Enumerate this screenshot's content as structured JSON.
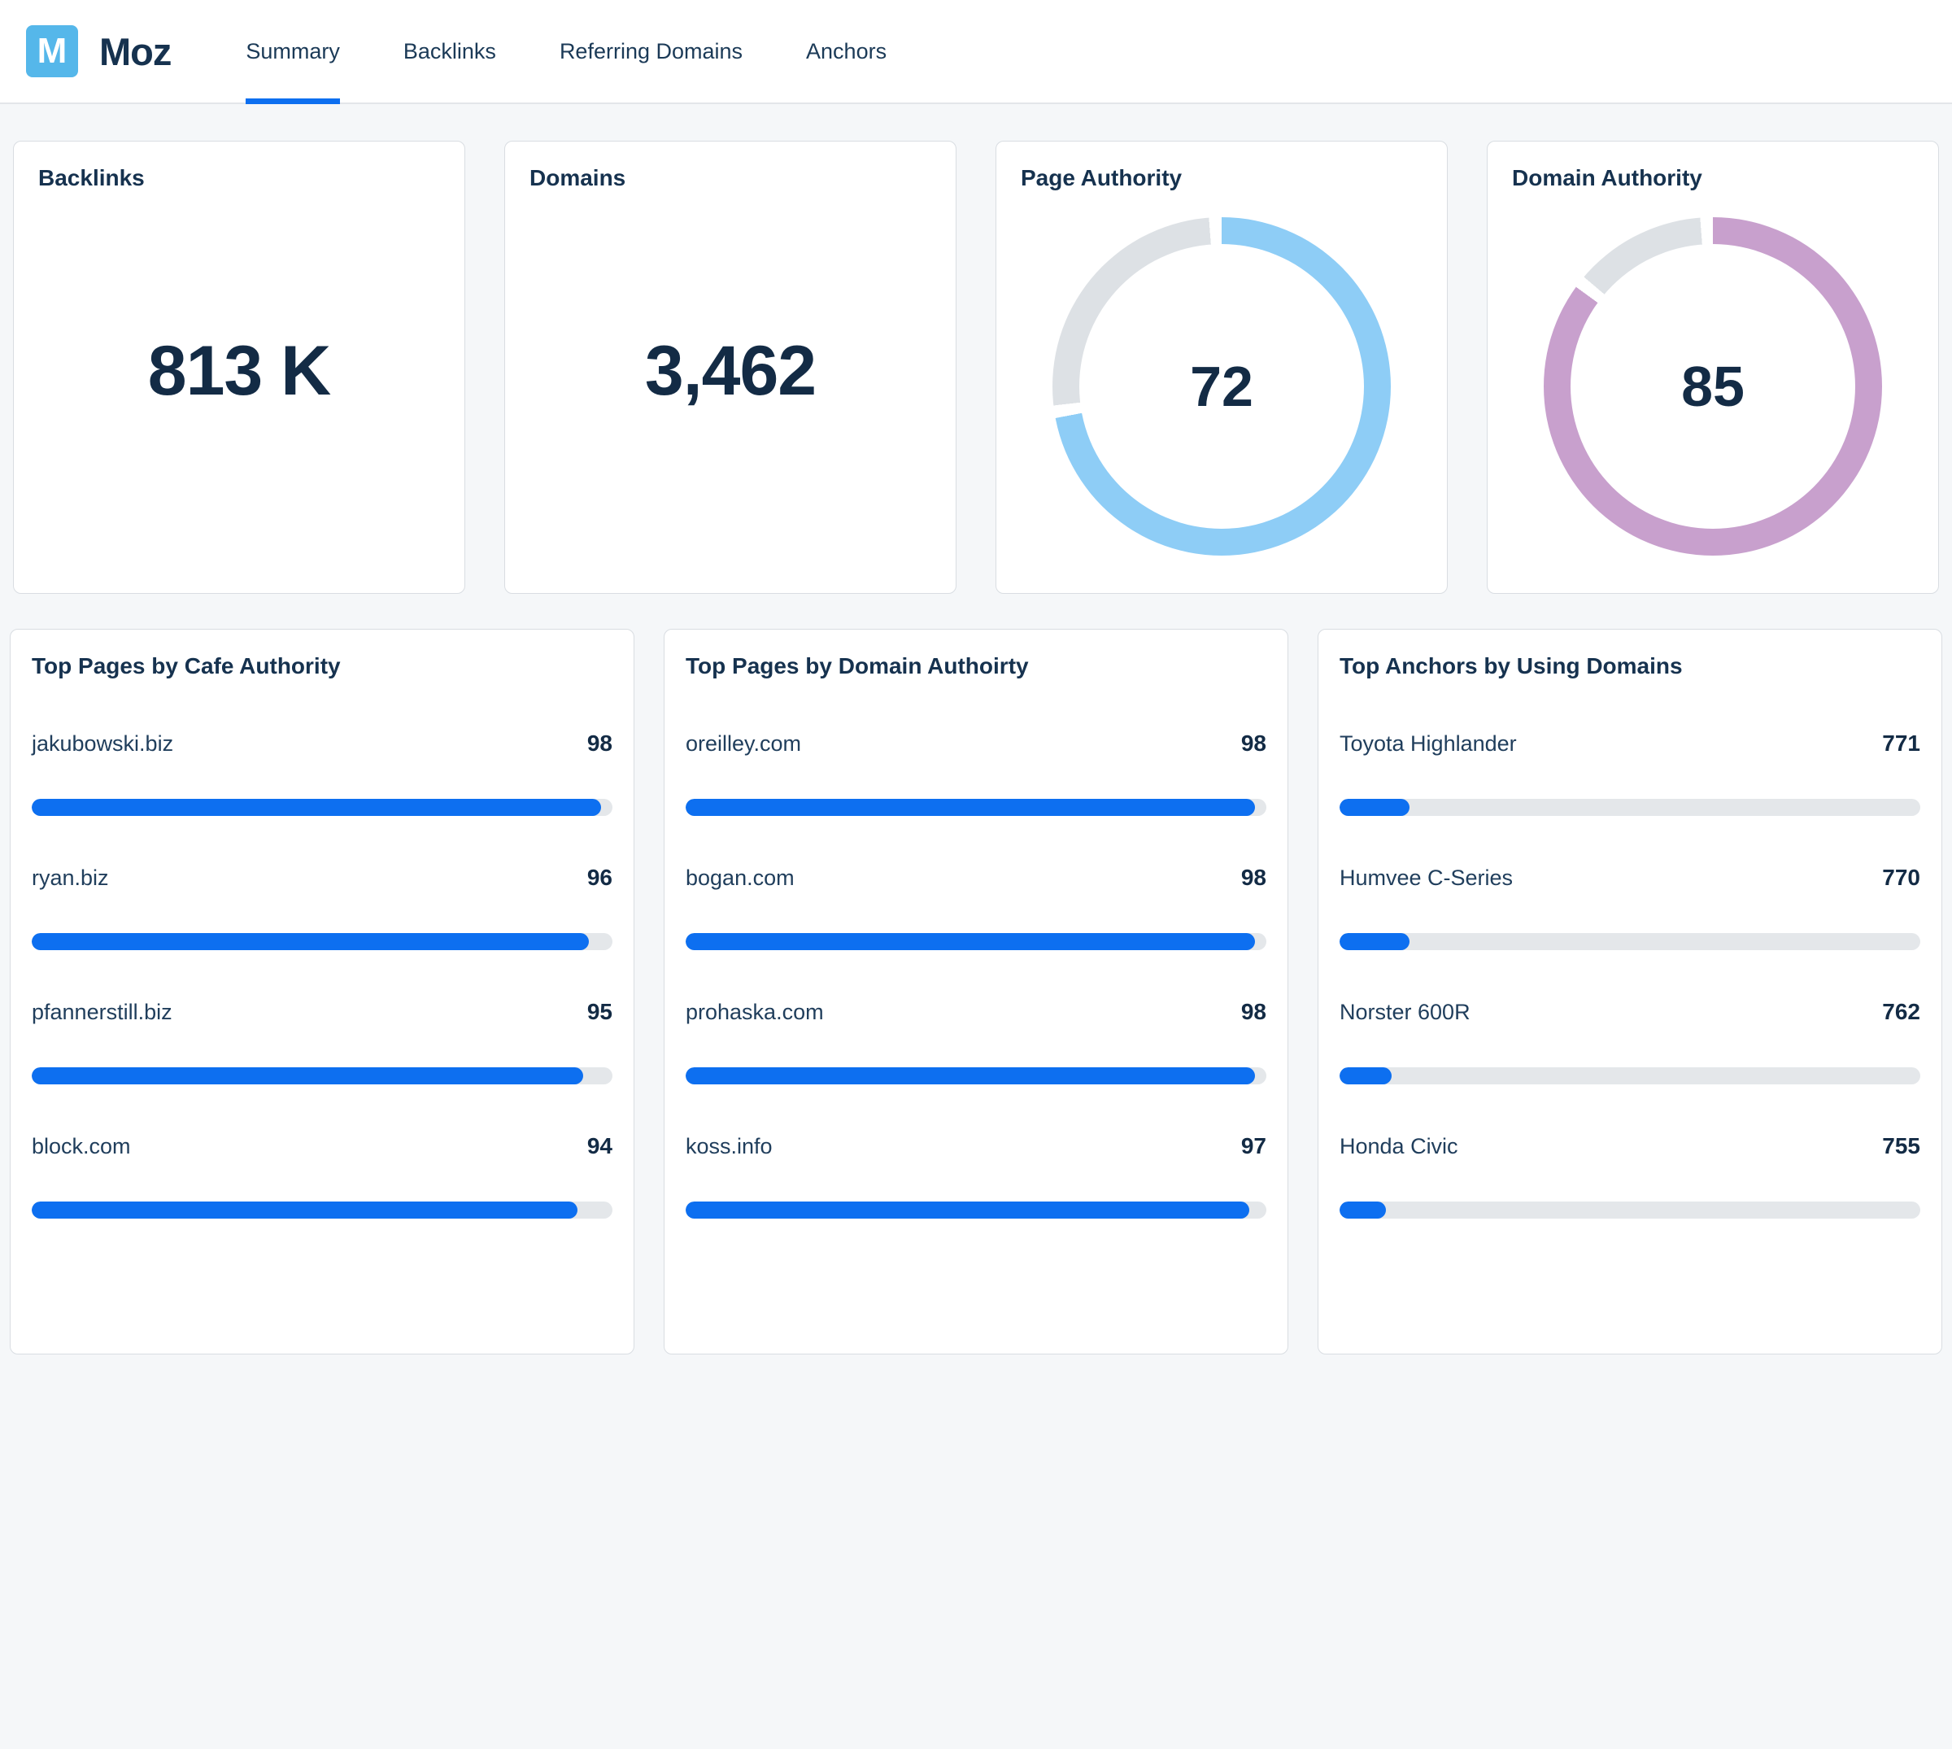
{
  "brand": {
    "name": "Moz",
    "logo_letter": "M"
  },
  "nav": {
    "items": [
      {
        "label": "Summary",
        "active": true
      },
      {
        "label": "Backlinks",
        "active": false
      },
      {
        "label": "Referring Domains",
        "active": false
      },
      {
        "label": "Anchors",
        "active": false
      }
    ]
  },
  "stat_cards": [
    {
      "type": "number",
      "title": "Backlinks",
      "value": "813 K"
    },
    {
      "type": "number",
      "title": "Domains",
      "value": "3,462"
    },
    {
      "type": "donut",
      "title": "Page Authority",
      "value": 72,
      "max": 100,
      "color": "#8ecdf6"
    },
    {
      "type": "donut",
      "title": "Domain Authority",
      "value": 85,
      "max": 100,
      "color": "#c8a0cd"
    }
  ],
  "list_cards": [
    {
      "title": "Top Pages by Cafe Authority",
      "items": [
        {
          "label": "jakubowski.biz",
          "value": "98",
          "percent": 98
        },
        {
          "label": "ryan.biz",
          "value": "96",
          "percent": 96
        },
        {
          "label": "pfannerstill.biz",
          "value": "95",
          "percent": 95
        },
        {
          "label": "block.com",
          "value": "94",
          "percent": 94
        }
      ]
    },
    {
      "title": "Top Pages by Domain Authoirty",
      "items": [
        {
          "label": "oreilley.com",
          "value": "98",
          "percent": 98
        },
        {
          "label": "bogan.com",
          "value": "98",
          "percent": 98
        },
        {
          "label": "prohaska.com",
          "value": "98",
          "percent": 98
        },
        {
          "label": "koss.info",
          "value": "97",
          "percent": 97
        }
      ]
    },
    {
      "title": "Top Anchors by Using Domains",
      "items": [
        {
          "label": "Toyota Highlander",
          "value": "771",
          "percent": 12
        },
        {
          "label": "Humvee C-Series",
          "value": "770",
          "percent": 12
        },
        {
          "label": "Norster 600R",
          "value": "762",
          "percent": 9
        },
        {
          "label": "Honda Civic",
          "value": "755",
          "percent": 8
        }
      ]
    }
  ],
  "colors": {
    "accent_blue": "#0d6ff0",
    "donut_blue": "#8ecdf6",
    "donut_purple": "#c8a0cd",
    "donut_track": "#dde1e5",
    "bar_track": "#e4e7ea",
    "logo_blue": "#55b7ea",
    "navy_text": "#16324f",
    "page_bg": "#f5f7f9",
    "card_border": "#d9dde2"
  },
  "chart_data": [
    {
      "type": "donut",
      "title": "Page Authority",
      "value": 72,
      "max": 100,
      "color": "#8ecdf6",
      "track": "#dde1e5"
    },
    {
      "type": "donut",
      "title": "Domain Authority",
      "value": 85,
      "max": 100,
      "color": "#c8a0cd",
      "track": "#dde1e5"
    },
    {
      "type": "bar",
      "title": "Top Pages by Cafe Authority",
      "categories": [
        "jakubowski.biz",
        "ryan.biz",
        "pfannerstill.biz",
        "block.com"
      ],
      "values": [
        98,
        96,
        95,
        94
      ],
      "xlim": [
        0,
        100
      ],
      "orientation": "horizontal"
    },
    {
      "type": "bar",
      "title": "Top Pages by Domain Authoirty",
      "categories": [
        "oreilley.com",
        "bogan.com",
        "prohaska.com",
        "koss.info"
      ],
      "values": [
        98,
        98,
        98,
        97
      ],
      "xlim": [
        0,
        100
      ],
      "orientation": "horizontal"
    },
    {
      "type": "bar",
      "title": "Top Anchors by Using Domains",
      "categories": [
        "Toyota Highlander",
        "Humvee C-Series",
        "Norster 600R",
        "Honda Civic"
      ],
      "values": [
        771,
        770,
        762,
        755
      ],
      "fill_percent_observed": [
        12,
        12,
        9,
        8
      ],
      "orientation": "horizontal"
    },
    {
      "type": "stat",
      "title": "Backlinks",
      "value": "813 K"
    },
    {
      "type": "stat",
      "title": "Domains",
      "value": "3,462"
    }
  ]
}
